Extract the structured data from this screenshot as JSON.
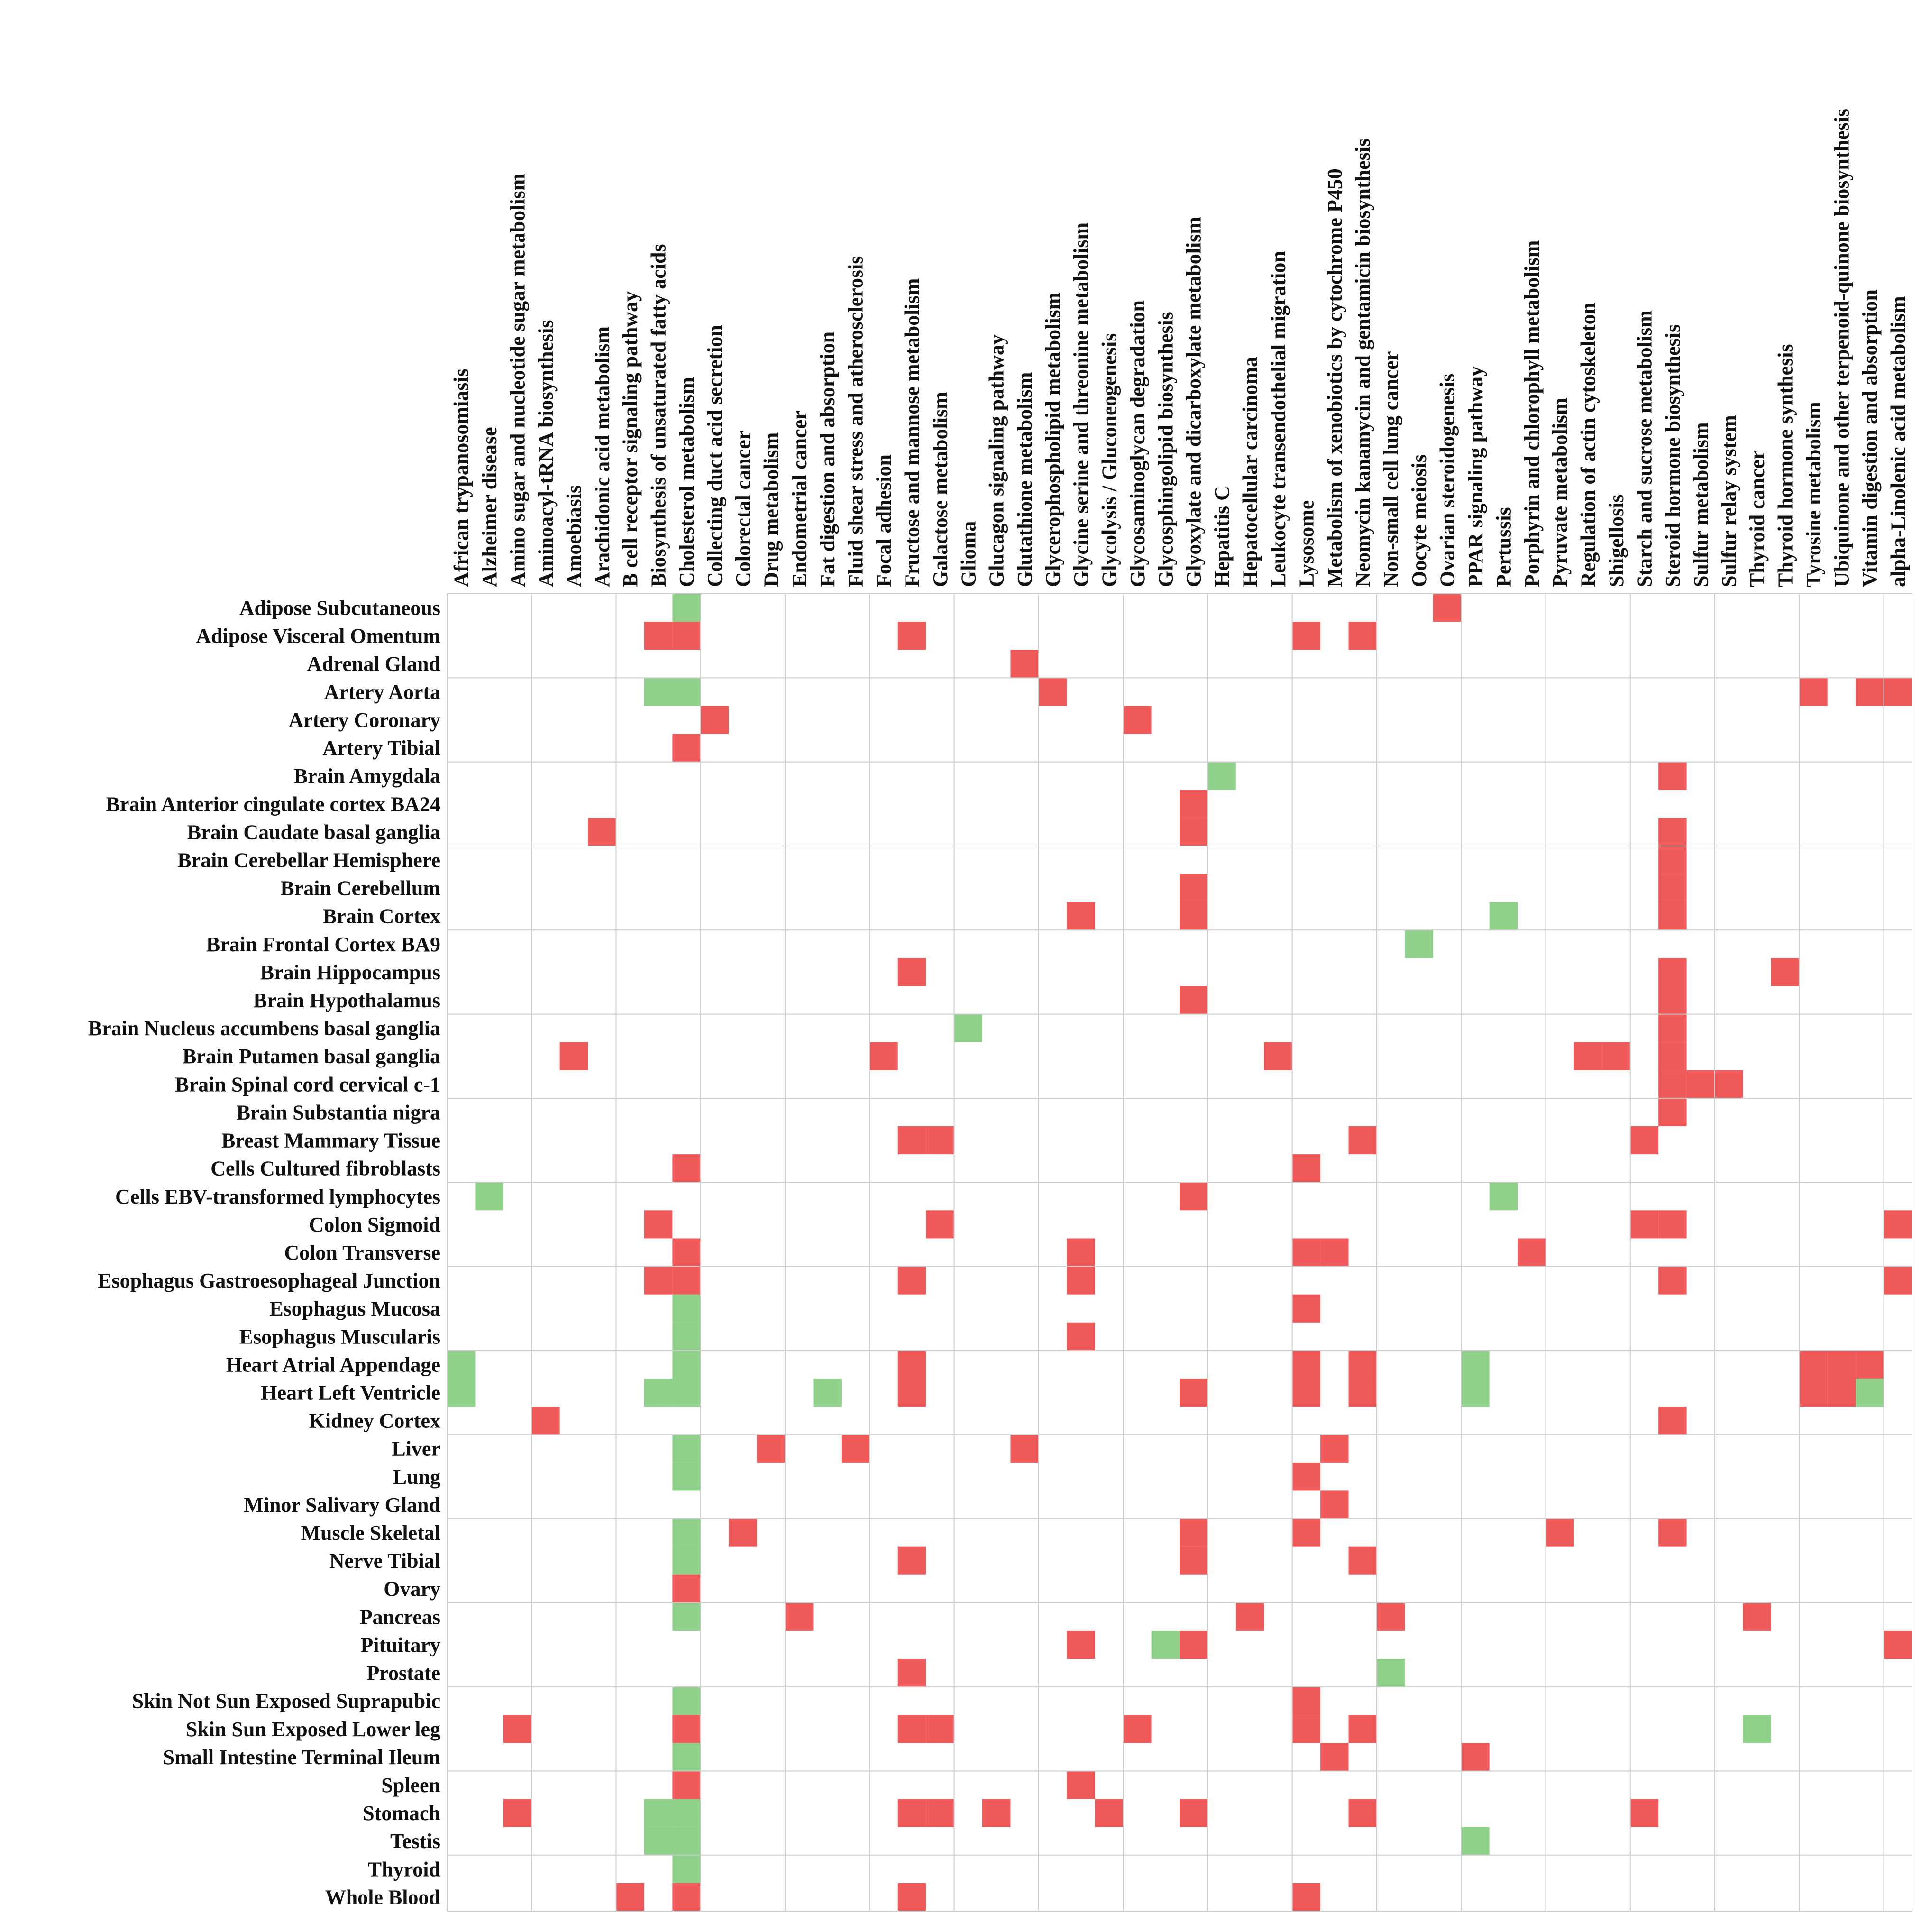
{
  "chart_data": {
    "type": "heatmap",
    "title": "",
    "xlabel": "",
    "ylabel": "",
    "legend": "none",
    "colors": {
      "up": "#f05a5a",
      "down": "#8fd18a",
      "grid": "#cccccc"
    },
    "columns": [
      "African trypanosomiasis",
      "Alzheimer disease",
      "Amino sugar and nucleotide sugar metabolism",
      "Aminoacyl-tRNA biosynthesis",
      "Amoebiasis",
      "Arachidonic acid metabolism",
      "B cell receptor signaling pathway",
      "Biosynthesis of unsaturated fatty acids",
      "Cholesterol metabolism",
      "Collecting duct acid secretion",
      "Colorectal cancer",
      "Drug metabolism",
      "Endometrial cancer",
      "Fat digestion and absorption",
      "Fluid shear stress and atherosclerosis",
      "Focal adhesion",
      "Fructose and mannose metabolism",
      "Galactose metabolism",
      "Glioma",
      "Glucagon signaling pathway",
      "Glutathione metabolism",
      "Glycerophospholipid metabolism",
      "Glycine serine and threonine metabolism",
      "Glycolysis / Gluconeogenesis",
      "Glycosaminoglycan degradation",
      "Glycosphingolipid biosynthesis",
      "Glyoxylate and dicarboxylate metabolism",
      "Hepatitis C",
      "Hepatocellular carcinoma",
      "Leukocyte transendothelial migration",
      "Lysosome",
      "Metabolism of xenobiotics by cytochrome P450",
      "Neomycin kanamycin and gentamicin biosynthesis",
      "Non-small cell lung cancer",
      "Oocyte meiosis",
      "Ovarian steroidogenesis",
      "PPAR signaling pathway",
      "Pertussis",
      "Porphyrin and chlorophyll metabolism",
      "Pyruvate metabolism",
      "Regulation of actin cytoskeleton",
      "Shigellosis",
      "Starch and sucrose metabolism",
      "Steroid hormone biosynthesis",
      "Sulfur metabolism",
      "Sulfur relay system",
      "Thyroid cancer",
      "Thyroid hormone synthesis",
      "Tyrosine metabolism",
      "Ubiquinone and other terpenoid-quinone biosynthesis",
      "Vitamin digestion and absorption",
      "alpha-Linolenic acid metabolism"
    ],
    "rows": [
      "Adipose Subcutaneous",
      "Adipose Visceral Omentum",
      "Adrenal Gland",
      "Artery Aorta",
      "Artery Coronary",
      "Artery Tibial",
      "Brain Amygdala",
      "Brain Anterior cingulate cortex BA24",
      "Brain Caudate basal ganglia",
      "Brain Cerebellar Hemisphere",
      "Brain Cerebellum",
      "Brain Cortex",
      "Brain Frontal Cortex BA9",
      "Brain Hippocampus",
      "Brain Hypothalamus",
      "Brain Nucleus accumbens basal ganglia",
      "Brain Putamen basal ganglia",
      "Brain Spinal cord cervical c-1",
      "Brain Substantia nigra",
      "Breast Mammary Tissue",
      "Cells Cultured fibroblasts",
      "Cells EBV-transformed lymphocytes",
      "Colon Sigmoid",
      "Colon Transverse",
      "Esophagus Gastroesophageal Junction",
      "Esophagus Mucosa",
      "Esophagus Muscularis",
      "Heart Atrial Appendage",
      "Heart Left Ventricle",
      "Kidney Cortex",
      "Liver",
      "Lung",
      "Minor Salivary Gland",
      "Muscle Skeletal",
      "Nerve Tibial",
      "Ovary",
      "Pancreas",
      "Pituitary",
      "Prostate",
      "Skin Not Sun Exposed Suprapubic",
      "Skin Sun Exposed Lower leg",
      "Small Intestine Terminal Ileum",
      "Spleen",
      "Stomach",
      "Testis",
      "Thyroid",
      "Whole Blood"
    ],
    "values_legend": {
      "1": "red",
      "-1": "green",
      "0": "blank"
    },
    "cells": [
      [
        0,
        8,
        -1
      ],
      [
        0,
        35,
        1
      ],
      [
        1,
        7,
        1
      ],
      [
        1,
        8,
        1
      ],
      [
        1,
        16,
        1
      ],
      [
        1,
        30,
        1
      ],
      [
        1,
        32,
        1
      ],
      [
        2,
        20,
        1
      ],
      [
        3,
        7,
        -1
      ],
      [
        3,
        8,
        -1
      ],
      [
        3,
        21,
        1
      ],
      [
        3,
        48,
        1
      ],
      [
        3,
        50,
        1
      ],
      [
        3,
        51,
        1
      ],
      [
        4,
        9,
        1
      ],
      [
        4,
        24,
        1
      ],
      [
        5,
        8,
        1
      ],
      [
        6,
        27,
        -1
      ],
      [
        6,
        43,
        1
      ],
      [
        7,
        26,
        1
      ],
      [
        8,
        5,
        1
      ],
      [
        8,
        26,
        1
      ],
      [
        8,
        43,
        1
      ],
      [
        9,
        43,
        1
      ],
      [
        10,
        26,
        1
      ],
      [
        10,
        43,
        1
      ],
      [
        11,
        22,
        1
      ],
      [
        11,
        26,
        1
      ],
      [
        11,
        37,
        -1
      ],
      [
        11,
        43,
        1
      ],
      [
        12,
        34,
        -1
      ],
      [
        13,
        16,
        1
      ],
      [
        13,
        43,
        1
      ],
      [
        13,
        47,
        1
      ],
      [
        14,
        26,
        1
      ],
      [
        14,
        43,
        1
      ],
      [
        15,
        18,
        -1
      ],
      [
        15,
        43,
        1
      ],
      [
        16,
        4,
        1
      ],
      [
        16,
        15,
        1
      ],
      [
        16,
        29,
        1
      ],
      [
        16,
        40,
        1
      ],
      [
        16,
        41,
        1
      ],
      [
        16,
        43,
        1
      ],
      [
        17,
        43,
        1
      ],
      [
        17,
        44,
        1
      ],
      [
        17,
        45,
        1
      ],
      [
        18,
        43,
        1
      ],
      [
        19,
        16,
        1
      ],
      [
        19,
        17,
        1
      ],
      [
        19,
        32,
        1
      ],
      [
        19,
        42,
        1
      ],
      [
        20,
        8,
        1
      ],
      [
        20,
        30,
        1
      ],
      [
        21,
        1,
        -1
      ],
      [
        21,
        26,
        1
      ],
      [
        21,
        37,
        -1
      ],
      [
        22,
        7,
        1
      ],
      [
        22,
        17,
        1
      ],
      [
        22,
        42,
        1
      ],
      [
        22,
        43,
        1
      ],
      [
        22,
        51,
        1
      ],
      [
        23,
        8,
        1
      ],
      [
        23,
        22,
        1
      ],
      [
        23,
        30,
        1
      ],
      [
        23,
        31,
        1
      ],
      [
        23,
        38,
        1
      ],
      [
        24,
        7,
        1
      ],
      [
        24,
        8,
        1
      ],
      [
        24,
        16,
        1
      ],
      [
        24,
        22,
        1
      ],
      [
        24,
        43,
        1
      ],
      [
        24,
        51,
        1
      ],
      [
        25,
        8,
        -1
      ],
      [
        25,
        30,
        1
      ],
      [
        26,
        8,
        -1
      ],
      [
        26,
        22,
        1
      ],
      [
        27,
        0,
        -1
      ],
      [
        27,
        8,
        -1
      ],
      [
        27,
        16,
        1
      ],
      [
        27,
        30,
        1
      ],
      [
        27,
        32,
        1
      ],
      [
        27,
        36,
        -1
      ],
      [
        27,
        48,
        1
      ],
      [
        27,
        49,
        1
      ],
      [
        27,
        50,
        1
      ],
      [
        28,
        0,
        -1
      ],
      [
        28,
        7,
        -1
      ],
      [
        28,
        8,
        -1
      ],
      [
        28,
        13,
        -1
      ],
      [
        28,
        16,
        1
      ],
      [
        28,
        26,
        1
      ],
      [
        28,
        30,
        1
      ],
      [
        28,
        32,
        1
      ],
      [
        28,
        36,
        -1
      ],
      [
        28,
        48,
        1
      ],
      [
        28,
        49,
        1
      ],
      [
        28,
        50,
        -1
      ],
      [
        29,
        3,
        1
      ],
      [
        29,
        43,
        1
      ],
      [
        30,
        8,
        -1
      ],
      [
        30,
        11,
        1
      ],
      [
        30,
        14,
        1
      ],
      [
        30,
        20,
        1
      ],
      [
        30,
        31,
        1
      ],
      [
        31,
        8,
        -1
      ],
      [
        31,
        30,
        1
      ],
      [
        32,
        31,
        1
      ],
      [
        33,
        8,
        -1
      ],
      [
        33,
        10,
        1
      ],
      [
        33,
        26,
        1
      ],
      [
        33,
        30,
        1
      ],
      [
        33,
        39,
        1
      ],
      [
        33,
        43,
        1
      ],
      [
        34,
        8,
        -1
      ],
      [
        34,
        16,
        1
      ],
      [
        34,
        26,
        1
      ],
      [
        34,
        32,
        1
      ],
      [
        35,
        8,
        1
      ],
      [
        36,
        8,
        -1
      ],
      [
        36,
        12,
        1
      ],
      [
        36,
        28,
        1
      ],
      [
        36,
        33,
        1
      ],
      [
        36,
        46,
        1
      ],
      [
        37,
        22,
        1
      ],
      [
        37,
        25,
        -1
      ],
      [
        37,
        26,
        1
      ],
      [
        37,
        51,
        1
      ],
      [
        38,
        16,
        1
      ],
      [
        38,
        33,
        -1
      ],
      [
        39,
        8,
        -1
      ],
      [
        39,
        30,
        1
      ],
      [
        40,
        2,
        1
      ],
      [
        40,
        8,
        1
      ],
      [
        40,
        16,
        1
      ],
      [
        40,
        17,
        1
      ],
      [
        40,
        24,
        1
      ],
      [
        40,
        30,
        1
      ],
      [
        40,
        32,
        1
      ],
      [
        40,
        46,
        -1
      ],
      [
        41,
        8,
        -1
      ],
      [
        41,
        31,
        1
      ],
      [
        41,
        36,
        1
      ],
      [
        42,
        8,
        1
      ],
      [
        42,
        22,
        1
      ],
      [
        43,
        2,
        1
      ],
      [
        43,
        7,
        -1
      ],
      [
        43,
        8,
        -1
      ],
      [
        43,
        16,
        1
      ],
      [
        43,
        17,
        1
      ],
      [
        43,
        19,
        1
      ],
      [
        43,
        23,
        1
      ],
      [
        43,
        26,
        1
      ],
      [
        43,
        32,
        1
      ],
      [
        43,
        42,
        1
      ],
      [
        44,
        7,
        -1
      ],
      [
        44,
        8,
        -1
      ],
      [
        44,
        36,
        -1
      ],
      [
        45,
        8,
        -1
      ],
      [
        46,
        6,
        1
      ],
      [
        46,
        8,
        1
      ],
      [
        46,
        16,
        1
      ],
      [
        46,
        30,
        1
      ]
    ],
    "column_group_size": 3,
    "row_group_size": 3
  }
}
